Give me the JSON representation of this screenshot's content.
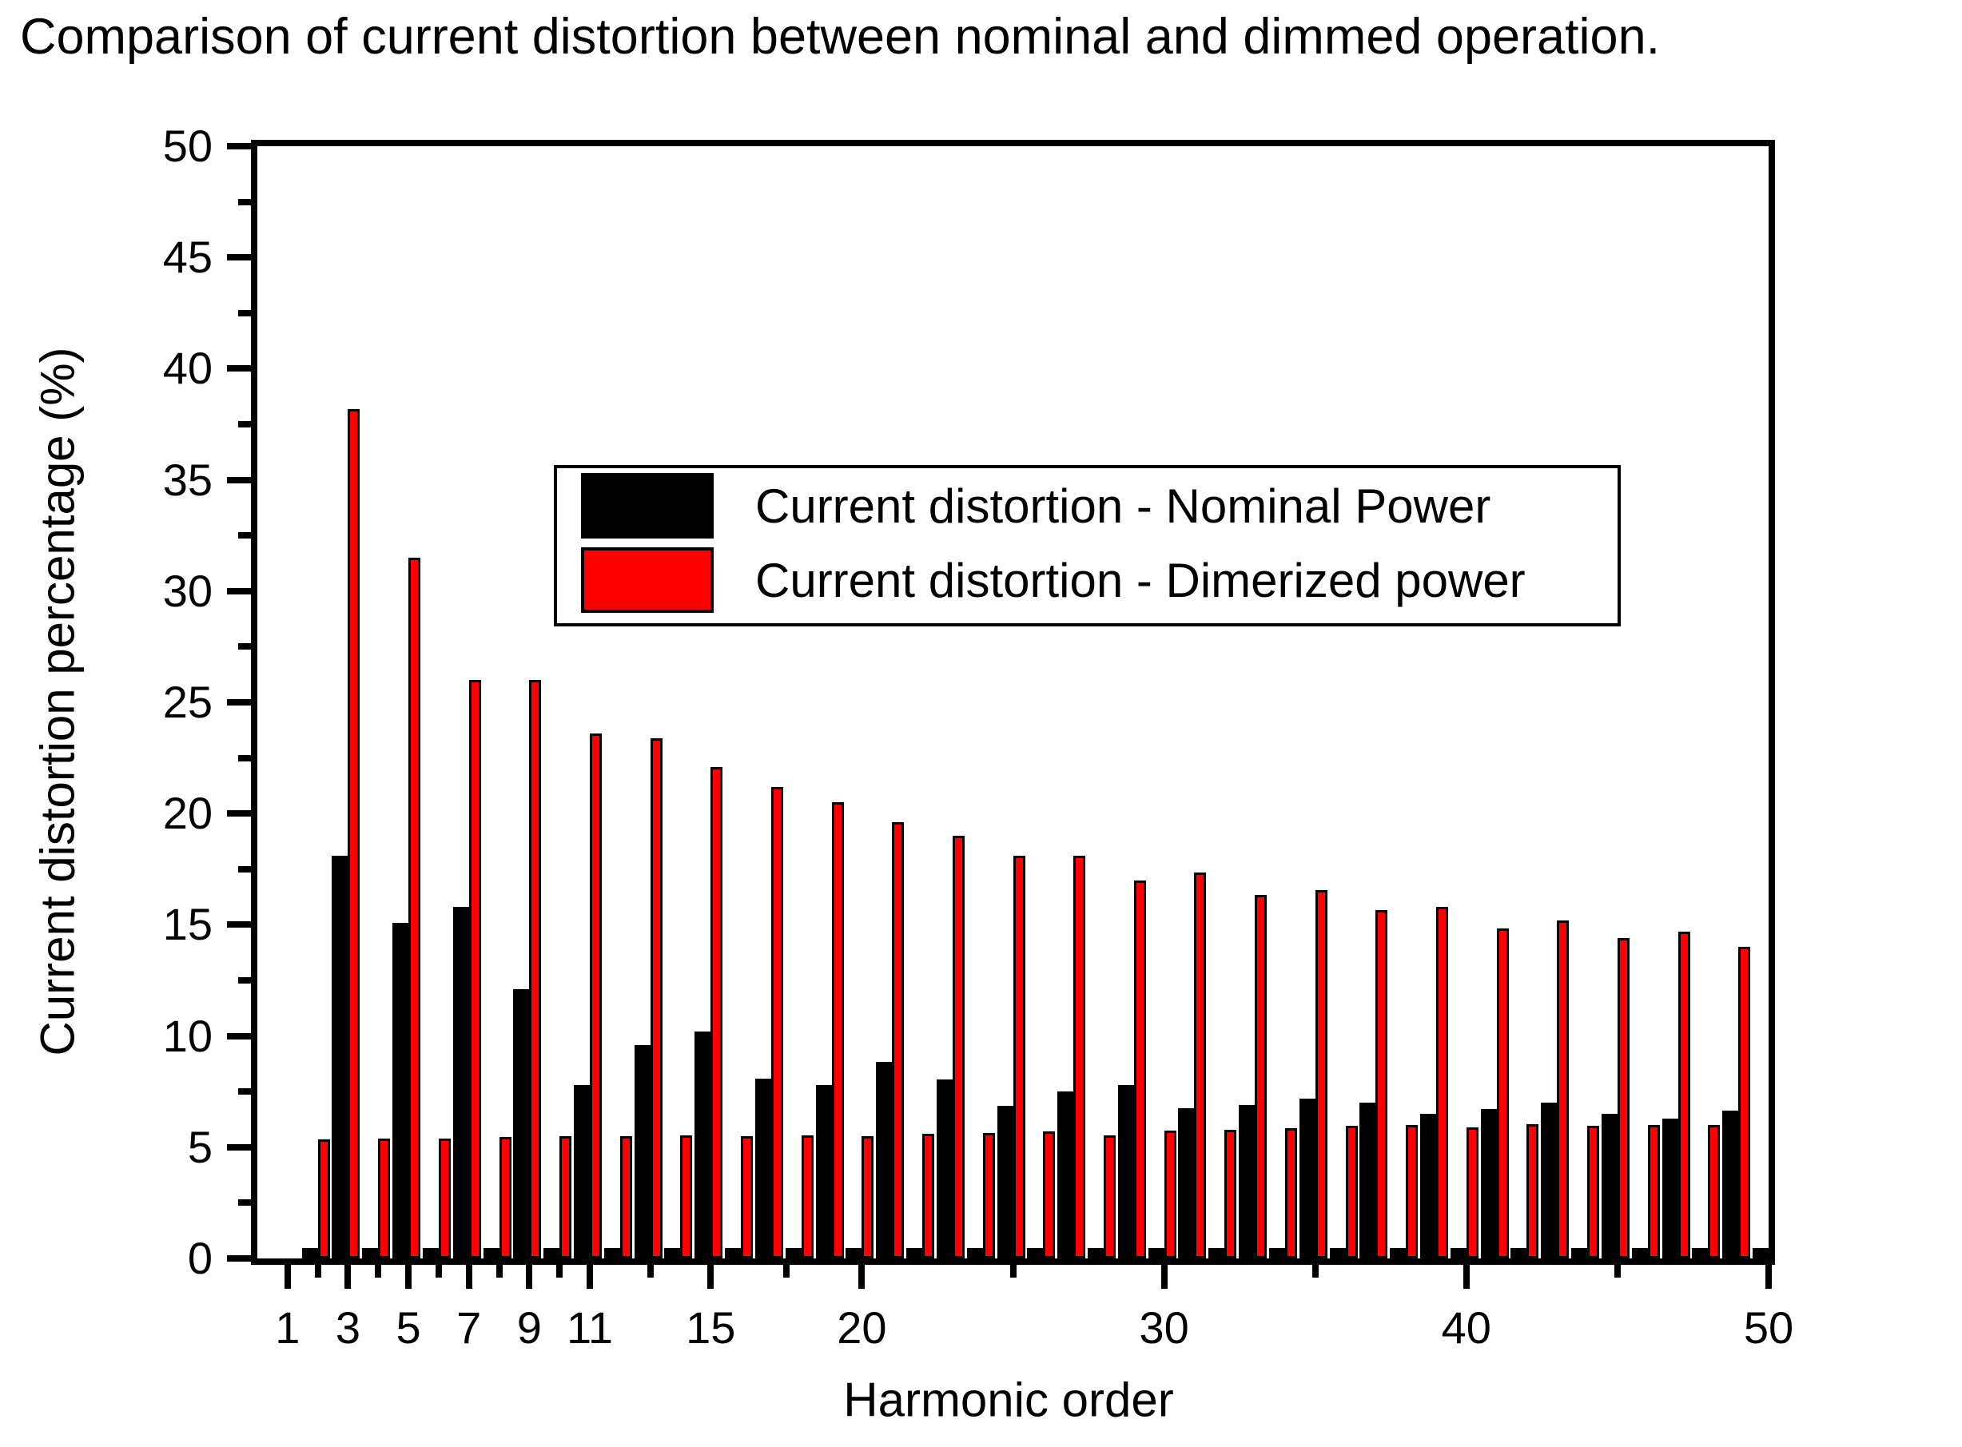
{
  "title": "Comparison of current distortion between nominal and dimmed operation.",
  "legend": {
    "nominal_label": "Current distortion - Nominal Power",
    "dimmed_label": "Current distortion - Dimerized power"
  },
  "chart_data": {
    "type": "bar",
    "title": "Comparison of current distortion between nominal and dimmed operation.",
    "xlabel": "Harmonic order",
    "ylabel": "Current distortion percentage (%)",
    "xlim": [
      0,
      50
    ],
    "ylim": [
      0,
      50
    ],
    "grid": false,
    "legend_position": "upper center inside plot",
    "colors": {
      "nominal": "#000000",
      "dimmed": "#FF0000",
      "axis": "#000000",
      "background": "#FFFFFF"
    },
    "x": [
      1,
      2,
      3,
      4,
      5,
      6,
      7,
      8,
      9,
      10,
      11,
      12,
      13,
      14,
      15,
      16,
      17,
      18,
      19,
      20,
      21,
      22,
      23,
      24,
      25,
      26,
      27,
      28,
      29,
      30,
      31,
      32,
      33,
      34,
      35,
      36,
      37,
      38,
      39,
      40,
      41,
      42,
      43,
      44,
      45,
      46,
      47,
      48,
      49,
      50
    ],
    "xticks_major": [
      1,
      3,
      5,
      7,
      9,
      11,
      15,
      20,
      30,
      40,
      50
    ],
    "xticks_minor": [
      2,
      4,
      6,
      8,
      10,
      13,
      17.5,
      25,
      35,
      45
    ],
    "yticks_major": [
      0,
      5,
      10,
      15,
      20,
      25,
      30,
      35,
      40,
      45,
      50
    ],
    "yticks_minor": [
      2.5,
      7.5,
      12.5,
      17.5,
      22.5,
      27.5,
      32.5,
      37.5,
      42.5,
      47.5
    ],
    "series": [
      {
        "name": "Current distortion - Nominal Power",
        "color": "#000000",
        "values": [
          0,
          0.45,
          18.1,
          0.45,
          15.1,
          0.45,
          15.8,
          0.45,
          12.1,
          0.45,
          7.8,
          0.45,
          9.6,
          0.45,
          10.2,
          0.45,
          8.1,
          0.45,
          7.8,
          0.45,
          8.85,
          0.45,
          8.05,
          0.45,
          6.85,
          0.45,
          7.5,
          0.45,
          7.8,
          0.45,
          6.75,
          0.45,
          6.9,
          0.45,
          7.2,
          0.45,
          7.0,
          0.45,
          6.5,
          0.45,
          6.7,
          0.45,
          7.0,
          0.45,
          6.5,
          0.45,
          6.3,
          0.45,
          6.65,
          0.45
        ]
      },
      {
        "name": "Current distortion - Dimerized power",
        "color": "#FF0000",
        "values": [
          0,
          5.35,
          38.2,
          5.4,
          31.5,
          5.4,
          26.0,
          5.45,
          26.0,
          5.5,
          23.6,
          5.5,
          23.4,
          5.55,
          22.1,
          5.5,
          21.2,
          5.55,
          20.5,
          5.5,
          19.6,
          5.6,
          19.0,
          5.65,
          18.1,
          5.7,
          18.1,
          5.55,
          17.0,
          5.75,
          17.35,
          5.8,
          16.35,
          5.85,
          16.55,
          5.95,
          15.65,
          6.0,
          15.8,
          5.9,
          14.85,
          6.05,
          15.2,
          5.95,
          14.4,
          6.0,
          14.7,
          6.0,
          14.0,
          6.05
        ]
      }
    ]
  }
}
